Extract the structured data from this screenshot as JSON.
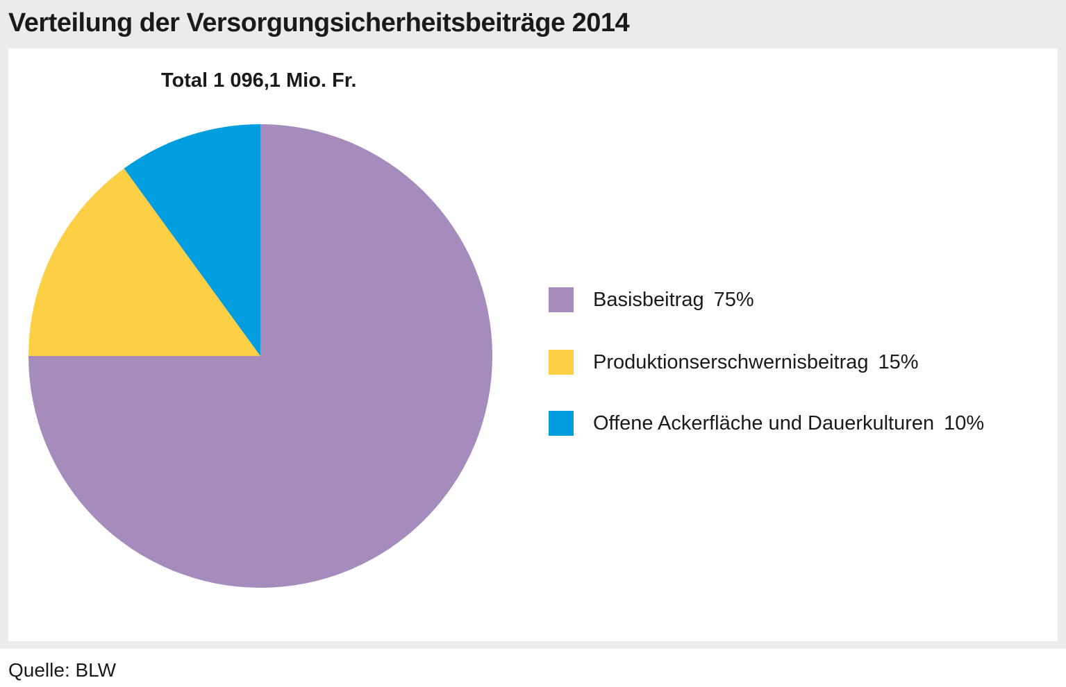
{
  "chart_data": {
    "type": "pie",
    "title": "Verteilung der Versorgungsicherheitsbeiträge 2014",
    "subtitle": "Total 1 096,1 Mio. Fr.",
    "slices": [
      {
        "label": "Basisbeitrag",
        "value": 75,
        "display": "75%",
        "color": "#a68bbd"
      },
      {
        "label": "Produktionserschwernisbeitrag",
        "value": 15,
        "display": "15%",
        "color": "#fccf45"
      },
      {
        "label": "Offene Ackerfläche und Dauerkulturen",
        "value": 10,
        "display": "10%",
        "color": "#009ddf"
      }
    ],
    "legend_position": "right",
    "source": "Quelle: BLW"
  }
}
